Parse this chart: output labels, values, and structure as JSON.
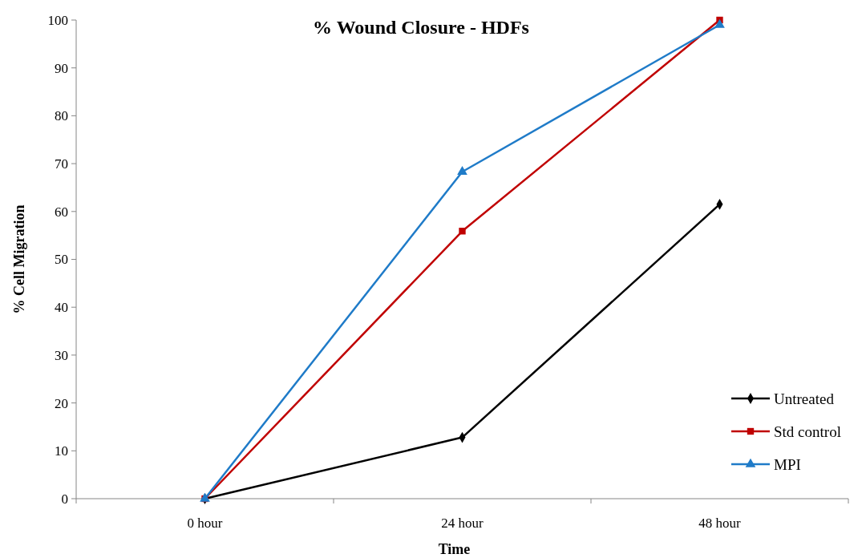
{
  "chart_data": {
    "type": "line",
    "title": "% Wound Closure - HDFs",
    "xlabel": "Time",
    "ylabel": "%  Cell Migration",
    "categories": [
      "0 hour",
      "24 hour",
      "48 hour"
    ],
    "ylim": [
      0,
      100
    ],
    "yticks": [
      0,
      10,
      20,
      30,
      40,
      50,
      60,
      70,
      80,
      90,
      100
    ],
    "grid": false,
    "legend": "bottom right",
    "series": [
      {
        "name": "Untreated",
        "color": "#000000",
        "marker": "diamond",
        "values": [
          0,
          12.8,
          61.5
        ]
      },
      {
        "name": "Std control",
        "color": "#c00000",
        "marker": "square",
        "values": [
          0,
          55.9,
          100
        ]
      },
      {
        "name": "MPI",
        "color": "#1f7bc8",
        "marker": "triangle",
        "values": [
          0,
          68.3,
          99
        ]
      }
    ]
  }
}
